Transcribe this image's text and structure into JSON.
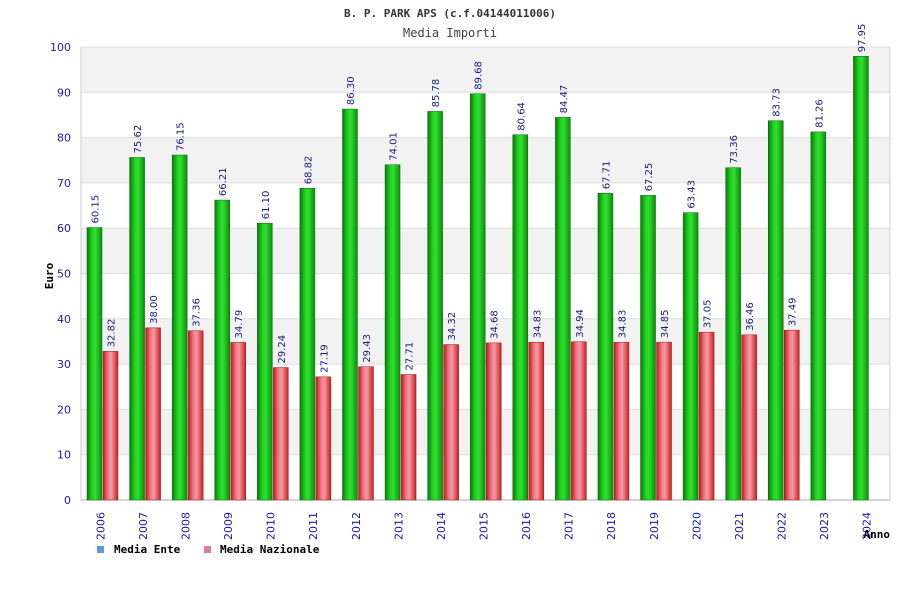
{
  "chart_data": {
    "type": "bar",
    "title": "B. P. PARK APS (c.f.04144011006)",
    "subtitle": "Media Importi",
    "xlabel": "Anno",
    "ylabel": "Euro",
    "ylim": [
      0,
      100
    ],
    "ytick_step": 10,
    "grid": true,
    "legend_position": "bottom-left",
    "categories": [
      "2006",
      "2007",
      "2008",
      "2009",
      "2010",
      "2011",
      "2012",
      "2013",
      "2014",
      "2015",
      "2016",
      "2017",
      "2018",
      "2019",
      "2020",
      "2021",
      "2022",
      "2023",
      "2024"
    ],
    "series": [
      {
        "name": "Media Ente",
        "legend_color": "#5b9bd5",
        "bar_color": "#1aa81a",
        "values": [
          60.15,
          75.62,
          76.15,
          66.21,
          61.1,
          68.82,
          86.3,
          74.01,
          85.78,
          89.68,
          80.64,
          84.47,
          67.71,
          67.25,
          63.43,
          73.36,
          83.73,
          81.26,
          97.95
        ],
        "labels": [
          "60.15",
          "75.62",
          "76.15",
          "66.21",
          "61.10",
          "68.82",
          "86.30",
          "74.01",
          "85.78",
          "89.68",
          "80.64",
          "84.47",
          "67.71",
          "67.25",
          "63.43",
          "73.36",
          "83.73",
          "81.26",
          "97.95"
        ]
      },
      {
        "name": "Media Nazionale",
        "legend_color": "#e07aa0",
        "bar_color": "#e23030",
        "values": [
          32.82,
          38.0,
          37.36,
          34.79,
          29.24,
          27.19,
          29.43,
          27.71,
          34.32,
          34.68,
          34.83,
          34.94,
          34.83,
          34.85,
          37.05,
          36.46,
          37.49,
          null,
          null
        ],
        "labels": [
          "32.82",
          "38.00",
          "37.36",
          "34.79",
          "29.24",
          "27.19",
          "29.43",
          "27.71",
          "34.32",
          "34.68",
          "34.83",
          "34.94",
          "34.83",
          "34.85",
          "37.05",
          "36.46",
          "37.49",
          null,
          null
        ]
      }
    ]
  }
}
